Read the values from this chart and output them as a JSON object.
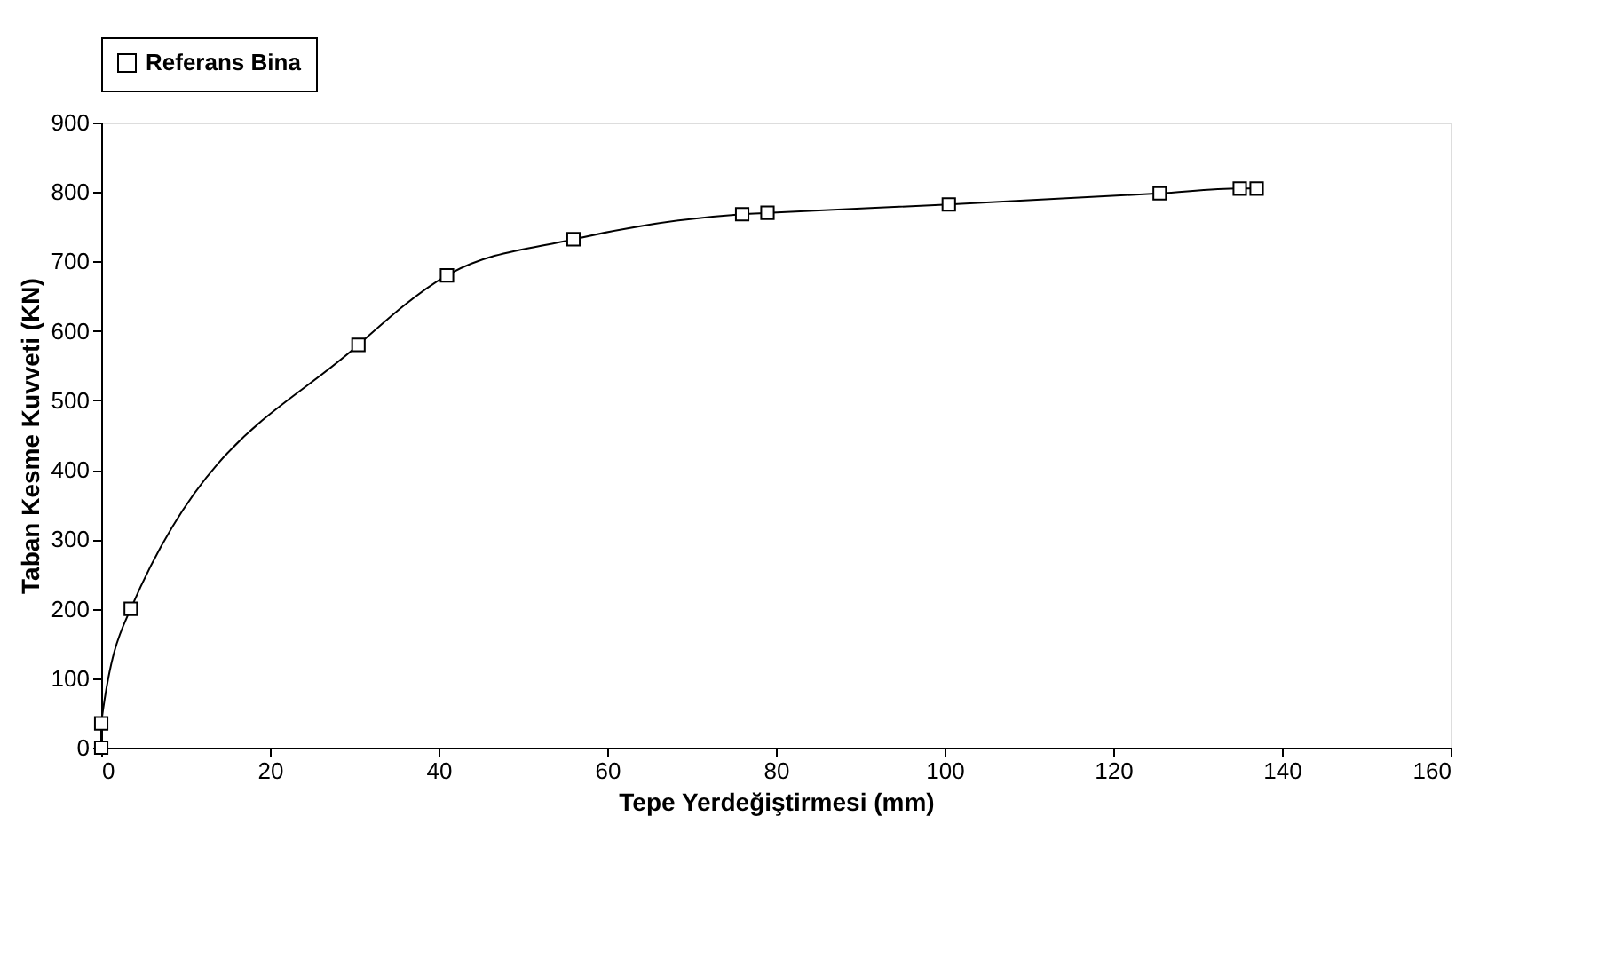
{
  "chart_data": {
    "type": "line",
    "xlabel": "Tepe Yerdeğiştirmesi (mm)",
    "ylabel": "Taban Kesme Kuvveti (KN)",
    "series": [
      {
        "name": "Referans Bina",
        "color": "#000000",
        "x": [
          0,
          0,
          3.5,
          30.5,
          41,
          56,
          76,
          79,
          100.5,
          125.5,
          135,
          137
        ],
        "values": [
          0,
          35,
          200,
          580,
          680,
          732,
          768,
          770,
          782,
          798,
          805,
          805
        ]
      }
    ],
    "xlim": [
      0,
      160
    ],
    "xticks": [
      0,
      20,
      40,
      60,
      80,
      100,
      120,
      140,
      160
    ],
    "ylim": [
      0,
      900
    ],
    "yticks": [
      0,
      100,
      200,
      300,
      400,
      500,
      600,
      700,
      800,
      900
    ],
    "grid": false,
    "legend": "top",
    "marker": "square",
    "line_style": "solid"
  }
}
